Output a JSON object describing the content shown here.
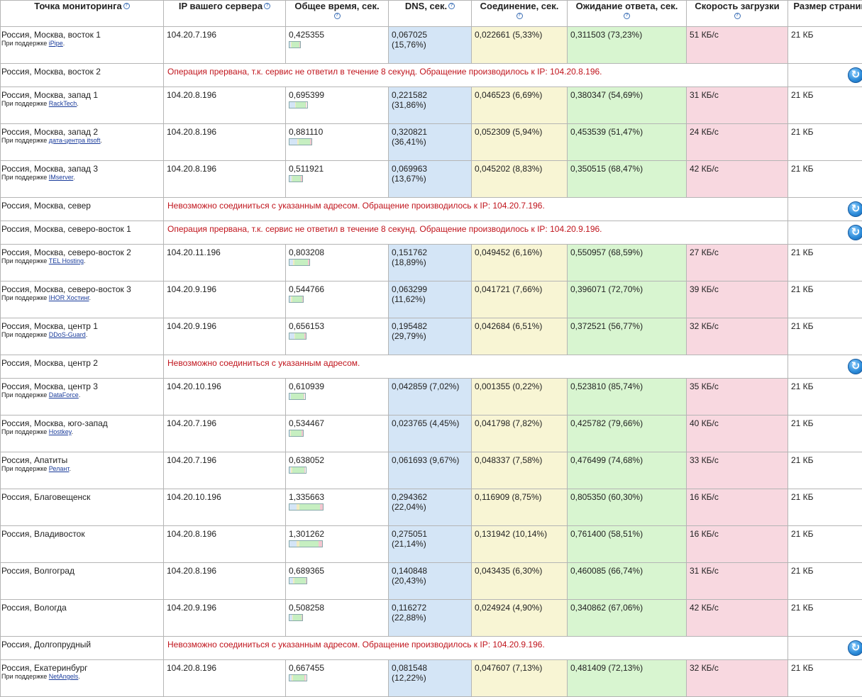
{
  "headers": {
    "location": "Точка мониторинга",
    "ip": "IP вашего сервера",
    "total": "Общее время, сек.",
    "dns": "DNS, сек.",
    "connect": "Соединение, сек.",
    "wait": "Ожидание ответа, сек.",
    "speed": "Скорость загрузки",
    "size": "Размер страницы",
    "help_glyph": "?"
  },
  "rows": [
    {
      "type": "ok",
      "location": "Россия, Москва, восток 1",
      "sponsor_prefix": "При поддержке",
      "sponsor": "iPipe",
      "ip": "104.20.7.196",
      "total": "0,425355",
      "total_num": 0.425355,
      "dns": "0,067025",
      "dns_pct": "(15,76%)",
      "connect": "0,022661 (5,33%)",
      "connect_num": 0.022661,
      "wait": "0,311503 (73,23%)",
      "wait_num": 0.311503,
      "speed": "51 КБ/с",
      "size": "21 КБ"
    },
    {
      "type": "err",
      "location": "Россия, Москва, восток 2",
      "message": "Операция прервана, т.к. сервис не ответил в течение 8 секунд. Обращение производилось к IP: 104.20.8.196."
    },
    {
      "type": "ok",
      "location": "Россия, Москва, запад 1",
      "sponsor_prefix": "При поддержке",
      "sponsor": "RackTech",
      "ip": "104.20.8.196",
      "total": "0,695399",
      "total_num": 0.695399,
      "dns": "0,221582",
      "dns_pct": "(31,86%)",
      "connect": "0,046523 (6,69%)",
      "connect_num": 0.046523,
      "wait": "0,380347 (54,69%)",
      "wait_num": 0.380347,
      "speed": "31 КБ/с",
      "size": "21 КБ"
    },
    {
      "type": "ok",
      "location": "Россия, Москва, запад 2",
      "sponsor_prefix": "При поддержке",
      "sponsor": "дата-центра itsoft",
      "ip": "104.20.8.196",
      "total": "0,881110",
      "total_num": 0.88111,
      "dns": "0,320821",
      "dns_pct": "(36,41%)",
      "connect": "0,052309 (5,94%)",
      "connect_num": 0.052309,
      "wait": "0,453539 (51,47%)",
      "wait_num": 0.453539,
      "speed": "24 КБ/с",
      "size": "21 КБ"
    },
    {
      "type": "ok",
      "location": "Россия, Москва, запад 3",
      "sponsor_prefix": "При поддержке",
      "sponsor": "IMserver",
      "ip": "104.20.8.196",
      "total": "0,511921",
      "total_num": 0.511921,
      "dns": "0,069963",
      "dns_pct": "(13,67%)",
      "connect": "0,045202 (8,83%)",
      "connect_num": 0.045202,
      "wait": "0,350515 (68,47%)",
      "wait_num": 0.350515,
      "speed": "42 КБ/с",
      "size": "21 КБ"
    },
    {
      "type": "err",
      "location": "Россия, Москва, север",
      "message": "Невозможно соединиться с указанным адресом. Обращение производилось к IP: 104.20.7.196."
    },
    {
      "type": "err",
      "location": "Россия, Москва, северо-восток 1",
      "message": "Операция прервана, т.к. сервис не ответил в течение 8 секунд. Обращение производилось к IP: 104.20.9.196."
    },
    {
      "type": "ok",
      "location": "Россия, Москва, северо-восток 2",
      "sponsor_prefix": "При поддержке",
      "sponsor": "TEL Hosting",
      "ip": "104.20.11.196",
      "total": "0,803208",
      "total_num": 0.803208,
      "dns": "0,151762",
      "dns_pct": "(18,89%)",
      "connect": "0,049452 (6,16%)",
      "connect_num": 0.049452,
      "wait": "0,550957 (68,59%)",
      "wait_num": 0.550957,
      "speed": "27 КБ/с",
      "size": "21 КБ"
    },
    {
      "type": "ok",
      "location": "Россия, Москва, северо-восток 3",
      "sponsor_prefix": "При поддержке",
      "sponsor": "IHOR Хостинг",
      "ip": "104.20.9.196",
      "total": "0,544766",
      "total_num": 0.544766,
      "dns": "0,063299",
      "dns_pct": "(11,62%)",
      "connect": "0,041721 (7,66%)",
      "connect_num": 0.041721,
      "wait": "0,396071 (72,70%)",
      "wait_num": 0.396071,
      "speed": "39 КБ/с",
      "size": "21 КБ"
    },
    {
      "type": "ok",
      "location": "Россия, Москва, центр 1",
      "sponsor_prefix": "При поддержке",
      "sponsor": "DDoS-Guard",
      "ip": "104.20.9.196",
      "total": "0,656153",
      "total_num": 0.656153,
      "dns": "0,195482",
      "dns_pct": "(29,79%)",
      "connect": "0,042684 (6,51%)",
      "connect_num": 0.042684,
      "wait": "0,372521 (56,77%)",
      "wait_num": 0.372521,
      "speed": "32 КБ/с",
      "size": "21 КБ"
    },
    {
      "type": "err",
      "location": "Россия, Москва, центр 2",
      "message": "Невозможно соединиться с указанным адресом."
    },
    {
      "type": "ok",
      "location": "Россия, Москва, центр 3",
      "sponsor_prefix": "При поддержке",
      "sponsor": "DataForce",
      "ip": "104.20.10.196",
      "total": "0,610939",
      "total_num": 0.610939,
      "dns": "0,042859 (7,02%)",
      "dns_pct": "",
      "connect": "0,001355 (0,22%)",
      "connect_num": 0.001355,
      "wait": "0,523810 (85,74%)",
      "wait_num": 0.52381,
      "speed": "35 КБ/с",
      "size": "21 КБ"
    },
    {
      "type": "ok",
      "location": "Россия, Москва, юго-запад",
      "sponsor_prefix": "При поддержке",
      "sponsor": "Hostkey",
      "ip": "104.20.7.196",
      "total": "0,534467",
      "total_num": 0.534467,
      "dns": "0,023765 (4,45%)",
      "dns_pct": "",
      "connect": "0,041798 (7,82%)",
      "connect_num": 0.041798,
      "wait": "0,425782 (79,66%)",
      "wait_num": 0.425782,
      "speed": "40 КБ/с",
      "size": "21 КБ"
    },
    {
      "type": "ok",
      "location": "Россия, Апатиты",
      "sponsor_prefix": "При поддержке",
      "sponsor": "Релант",
      "ip": "104.20.7.196",
      "total": "0,638052",
      "total_num": 0.638052,
      "dns": "0,061693 (9,67%)",
      "dns_pct": "",
      "connect": "0,048337 (7,58%)",
      "connect_num": 0.048337,
      "wait": "0,476499 (74,68%)",
      "wait_num": 0.476499,
      "speed": "33 КБ/с",
      "size": "21 КБ"
    },
    {
      "type": "ok",
      "location": "Россия, Благовещенск",
      "sponsor_prefix": "",
      "sponsor": "",
      "ip": "104.20.10.196",
      "total": "1,335663",
      "total_num": 1.335663,
      "dns": "0,294362",
      "dns_pct": "(22,04%)",
      "connect": "0,116909 (8,75%)",
      "connect_num": 0.116909,
      "wait": "0,805350 (60,30%)",
      "wait_num": 0.80535,
      "speed": "16 КБ/с",
      "size": "21 КБ"
    },
    {
      "type": "ok",
      "location": "Россия, Владивосток",
      "sponsor_prefix": "",
      "sponsor": "",
      "ip": "104.20.8.196",
      "total": "1,301262",
      "total_num": 1.301262,
      "dns": "0,275051",
      "dns_pct": "(21,14%)",
      "connect": "0,131942 (10,14%)",
      "connect_num": 0.131942,
      "wait": "0,761400 (58,51%)",
      "wait_num": 0.7614,
      "speed": "16 КБ/с",
      "size": "21 КБ"
    },
    {
      "type": "ok",
      "location": "Россия, Волгоград",
      "sponsor_prefix": "",
      "sponsor": "",
      "ip": "104.20.8.196",
      "total": "0,689365",
      "total_num": 0.689365,
      "dns": "0,140848",
      "dns_pct": "(20,43%)",
      "connect": "0,043435 (6,30%)",
      "connect_num": 0.043435,
      "wait": "0,460085 (66,74%)",
      "wait_num": 0.460085,
      "speed": "31 КБ/с",
      "size": "21 КБ"
    },
    {
      "type": "ok",
      "location": "Россия, Вологда",
      "sponsor_prefix": "",
      "sponsor": "",
      "ip": "104.20.9.196",
      "total": "0,508258",
      "total_num": 0.508258,
      "dns": "0,116272",
      "dns_pct": "(22,88%)",
      "connect": "0,024924 (4,90%)",
      "connect_num": 0.024924,
      "wait": "0,340862 (67,06%)",
      "wait_num": 0.340862,
      "speed": "42 КБ/с",
      "size": "21 КБ"
    },
    {
      "type": "err",
      "location": "Россия, Долгопрудный",
      "message": "Невозможно соединиться с указанным адресом. Обращение производилось к IP: 104.20.9.196."
    },
    {
      "type": "ok",
      "location": "Россия, Екатеринбург",
      "sponsor_prefix": "При поддержке",
      "sponsor": "NetAngels",
      "ip": "104.20.8.196",
      "total": "0,667455",
      "total_num": 0.667455,
      "dns": "0,081548",
      "dns_pct": "(12,22%)",
      "connect": "0,047607 (7,13%)",
      "connect_num": 0.047607,
      "wait": "0,481409 (72,13%)",
      "wait_num": 0.481409,
      "speed": "32 КБ/с",
      "size": "21 КБ"
    }
  ]
}
